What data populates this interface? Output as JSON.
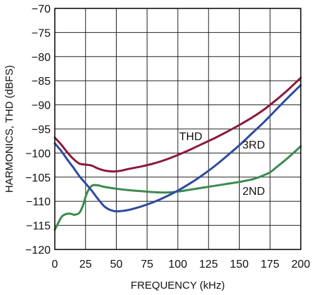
{
  "chart_data": {
    "type": "line",
    "xlabel": "FREQUENCY (kHz)",
    "ylabel": "HARMONICS, THD (dBFS)",
    "xlim": [
      0,
      200
    ],
    "ylim": [
      -120,
      -70
    ],
    "x_ticks": [
      0,
      25,
      50,
      75,
      100,
      125,
      150,
      175,
      200
    ],
    "y_ticks": [
      -70,
      -75,
      -80,
      -85,
      -90,
      -95,
      -100,
      -105,
      -110,
      -115,
      -120
    ],
    "x_tick_labels": [
      "0",
      "25",
      "50",
      "75",
      "100",
      "125",
      "150",
      "175",
      "200"
    ],
    "y_tick_labels": [
      "−70",
      "−75",
      "−80",
      "−85",
      "−90",
      "−95",
      "−100",
      "−105",
      "−110",
      "−115",
      "−120"
    ],
    "grid": true,
    "series": [
      {
        "name": "THD",
        "color": "#8b1a3a",
        "x": [
          0,
          5,
          10,
          15,
          20,
          25,
          30,
          35,
          40,
          45,
          50,
          55,
          60,
          70,
          80,
          90,
          100,
          110,
          120,
          130,
          140,
          150,
          160,
          170,
          180,
          190,
          200
        ],
        "y": [
          -96.8,
          -98.2,
          -99.8,
          -101.2,
          -102.2,
          -102.4,
          -102.6,
          -103.2,
          -103.6,
          -103.8,
          -103.8,
          -103.6,
          -103.3,
          -102.8,
          -102.2,
          -101.4,
          -100.4,
          -99.3,
          -98.1,
          -96.9,
          -95.6,
          -94.2,
          -92.7,
          -91.0,
          -89.0,
          -86.8,
          -84.4
        ]
      },
      {
        "name": "3RD",
        "color": "#2e4a9e",
        "x": [
          0,
          5,
          10,
          15,
          20,
          25,
          30,
          35,
          40,
          45,
          50,
          55,
          60,
          70,
          80,
          90,
          100,
          110,
          120,
          130,
          140,
          150,
          160,
          170,
          180,
          190,
          200
        ],
        "y": [
          -98.0,
          -99.5,
          -101.3,
          -103.0,
          -104.8,
          -106.3,
          -107.8,
          -109.5,
          -111.0,
          -111.8,
          -112.1,
          -112.0,
          -111.8,
          -111.1,
          -110.2,
          -109.1,
          -107.8,
          -106.3,
          -104.6,
          -102.7,
          -100.6,
          -98.4,
          -96.0,
          -93.6,
          -91.0,
          -88.4,
          -85.9
        ]
      },
      {
        "name": "2ND",
        "color": "#3b8a4f",
        "x": [
          0,
          3,
          6,
          10,
          13,
          16,
          20,
          23,
          26,
          30,
          35,
          40,
          50,
          60,
          70,
          80,
          90,
          100,
          110,
          120,
          130,
          140,
          150,
          160,
          165,
          170,
          175,
          180,
          190,
          200
        ],
        "y": [
          -115.9,
          -114.4,
          -113.1,
          -112.6,
          -112.6,
          -112.8,
          -112.4,
          -110.8,
          -108.4,
          -106.8,
          -106.7,
          -107.0,
          -107.4,
          -107.7,
          -107.9,
          -108.1,
          -108.2,
          -108.0,
          -107.6,
          -107.2,
          -106.8,
          -106.4,
          -106.0,
          -105.5,
          -105.1,
          -104.6,
          -104.0,
          -103.0,
          -100.9,
          -98.6
        ]
      }
    ]
  }
}
